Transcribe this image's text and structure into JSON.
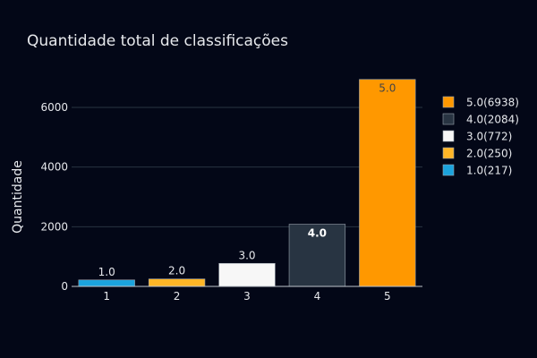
{
  "chart_data": {
    "type": "bar",
    "title": "Quantidade total de classificações",
    "xlabel": "",
    "ylabel": "Quantidade",
    "categories": [
      "1",
      "2",
      "3",
      "4",
      "5"
    ],
    "values": [
      217,
      250,
      772,
      2084,
      6938
    ],
    "bar_labels": [
      "1.0",
      "2.0",
      "3.0",
      "4.0",
      "5.0"
    ],
    "label_colors": [
      "#ffffff",
      "#ffffff",
      "#444444",
      "#ffffff",
      "#444444"
    ],
    "label_bold": [
      false,
      false,
      false,
      true,
      false
    ],
    "colors": [
      "#1ba3dd",
      "#ffb627",
      "#f7f7f7",
      "#283442",
      "#ff9800"
    ],
    "ylim": [
      0,
      7200
    ],
    "yticks": [
      0,
      2000,
      4000,
      6000
    ],
    "ytick_labels": [
      "0",
      "2000",
      "4000",
      "6000"
    ],
    "grid": true,
    "legend": {
      "placement": "right",
      "entries": [
        {
          "label": "5.0(6938)",
          "color": "#ff9800"
        },
        {
          "label": "4.0(2084)",
          "color": "#283442"
        },
        {
          "label": "3.0(772)",
          "color": "#f7f7f7"
        },
        {
          "label": "2.0(250)",
          "color": "#ffb627"
        },
        {
          "label": "1.0(217)",
          "color": "#1ba3dd"
        }
      ]
    },
    "background": "#030717",
    "grid_color": "#283442"
  }
}
